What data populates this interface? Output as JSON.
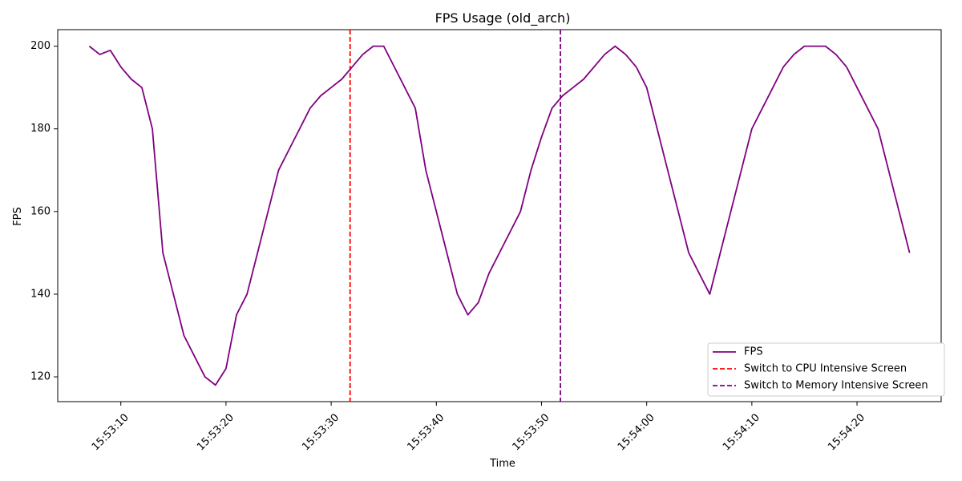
{
  "chart_data": {
    "type": "line",
    "title": "FPS Usage (old_arch)",
    "xlabel": "Time",
    "ylabel": "FPS",
    "x_start": "15:53:07",
    "x_step_seconds": 1,
    "x_range": [
      "15:53:04",
      "15:54:28"
    ],
    "ylim": [
      114,
      204
    ],
    "x_ticks": [
      "15:53:10",
      "15:53:20",
      "15:53:30",
      "15:53:40",
      "15:53:50",
      "15:54:00",
      "15:54:10",
      "15:54:20"
    ],
    "y_ticks": [
      120,
      140,
      160,
      180,
      200
    ],
    "grid": false,
    "legend_position": "bottom-right",
    "series": [
      {
        "name": "FPS",
        "color": "#800080",
        "style": "solid",
        "values": [
          200,
          198,
          199,
          195,
          192,
          190,
          180,
          150,
          140,
          130,
          125,
          120,
          118,
          122,
          135,
          140,
          150,
          160,
          170,
          175,
          180,
          185,
          188,
          190,
          192,
          195,
          198,
          200,
          200,
          195,
          190,
          185,
          170,
          160,
          150,
          140,
          135,
          138,
          145,
          150,
          155,
          160,
          170,
          178,
          185,
          188,
          190,
          192,
          195,
          198,
          200,
          198,
          195,
          190,
          180,
          170,
          160,
          150,
          145,
          140,
          150,
          160,
          170,
          180,
          185,
          190,
          195,
          198,
          200,
          200,
          200,
          198,
          195,
          190,
          185,
          180,
          170,
          160,
          150
        ]
      }
    ],
    "vlines": [
      {
        "name": "Switch to CPU Intensive Screen",
        "x": "15:53:31.8",
        "color": "#ff0000",
        "style": "dashed"
      },
      {
        "name": "Switch to Memory Intensive Screen",
        "x": "15:53:51.8",
        "color": "#800080",
        "style": "dashed"
      }
    ]
  }
}
